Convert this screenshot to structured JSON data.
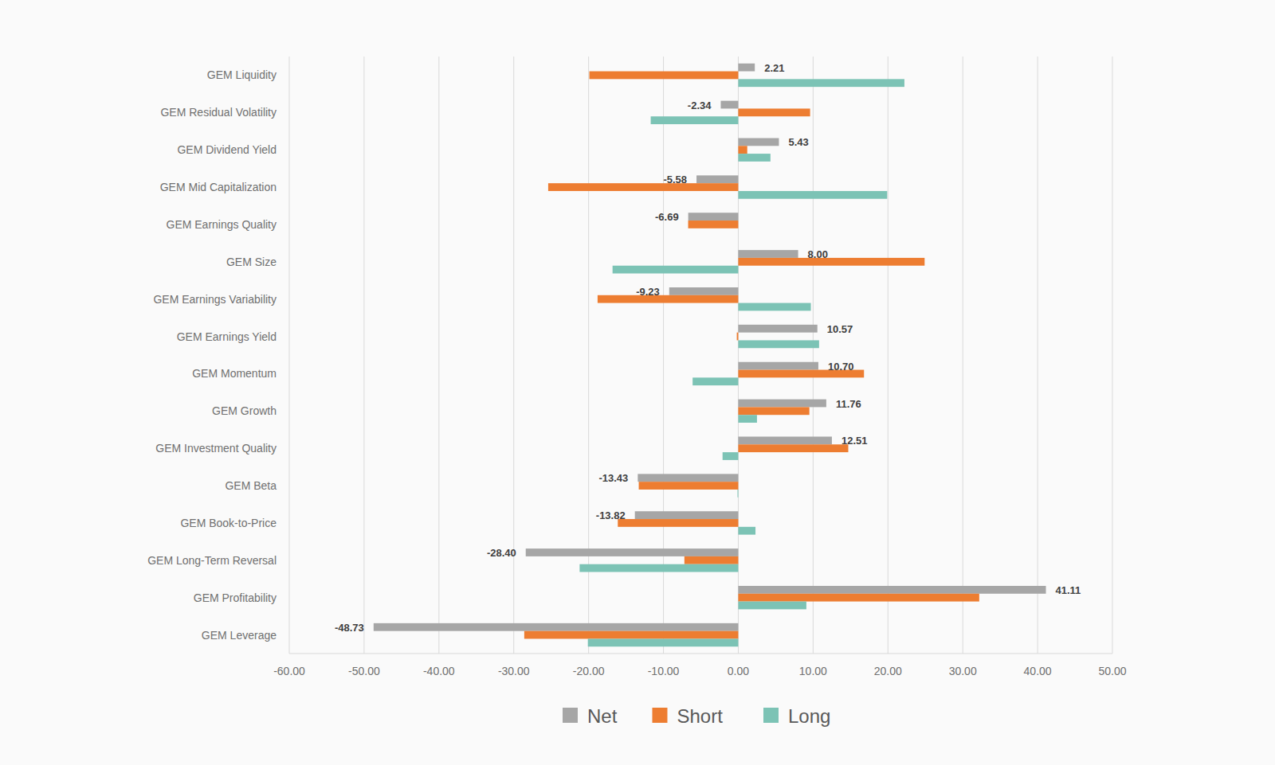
{
  "chart_data": {
    "type": "bar",
    "orientation": "horizontal",
    "grid": true,
    "legend": "bottom",
    "categories": [
      "GEM Liquidity",
      "GEM Residual Volatility",
      "GEM Dividend Yield",
      "GEM Mid Capitalization",
      "GEM Earnings Quality",
      "GEM Size",
      "GEM Earnings Variability",
      "GEM Earnings Yield",
      "GEM Momentum",
      "GEM Growth",
      "GEM Investment Quality",
      "GEM Beta",
      "GEM Book-to-Price",
      "GEM Long-Term Reversal",
      "GEM Profitability",
      "GEM Leverage"
    ],
    "series": [
      {
        "name": "Net",
        "color": "#a6a6a6",
        "data_labels": true,
        "values": [
          2.21,
          -2.34,
          5.43,
          -5.58,
          -6.69,
          8.0,
          -9.23,
          10.57,
          10.7,
          11.76,
          12.51,
          -13.43,
          -13.82,
          -28.4,
          41.11,
          -48.73
        ],
        "value_labels": [
          "2.21",
          "-2.34",
          "5.43",
          "-5.58",
          "-6.69",
          "8.00",
          "-9.23",
          "10.57",
          "10.70",
          "11.76",
          "12.51",
          "-13.43",
          "-13.82",
          "-28.40",
          "41.11",
          "-48.73"
        ]
      },
      {
        "name": "Short",
        "color": "#ed7d31",
        "values": [
          -19.9,
          9.6,
          1.2,
          -25.4,
          -6.7,
          24.9,
          -18.8,
          -0.2,
          16.8,
          9.5,
          14.7,
          -13.3,
          -16.1,
          -7.2,
          32.2,
          -28.6
        ]
      },
      {
        "name": "Long",
        "color": "#7cc3b5",
        "values": [
          22.2,
          -11.7,
          4.3,
          19.9,
          0,
          -16.8,
          9.7,
          10.8,
          -6.1,
          2.5,
          -2.1,
          -0.1,
          2.3,
          -21.2,
          9.1,
          -20.1
        ]
      }
    ],
    "xlim": [
      -60,
      50
    ],
    "xticks": [
      {
        "value": -60,
        "label": "-60.00"
      },
      {
        "value": -50,
        "label": "-50.00"
      },
      {
        "value": -40,
        "label": "-40.00"
      },
      {
        "value": -30,
        "label": "-30.00"
      },
      {
        "value": -20,
        "label": "-20.00"
      },
      {
        "value": -10,
        "label": "-10.00"
      },
      {
        "value": 0,
        "label": "0.00"
      },
      {
        "value": 10,
        "label": "10.00"
      },
      {
        "value": 20,
        "label": "20.00"
      },
      {
        "value": 30,
        "label": "30.00"
      },
      {
        "value": 40,
        "label": "40.00"
      },
      {
        "value": 50,
        "label": "50.00"
      }
    ]
  }
}
